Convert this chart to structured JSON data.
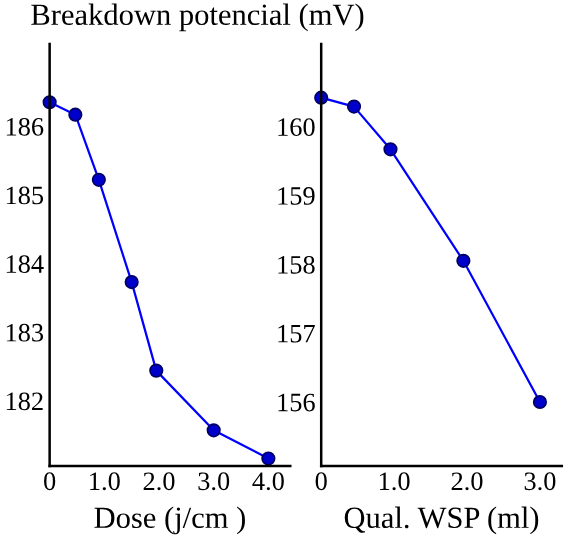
{
  "chart_data": [
    {
      "type": "line",
      "ylabel": "Breakdown potencial (mV)",
      "xlabel": "Dose (j/cm )",
      "x": [
        0,
        0.47,
        0.9,
        1.5,
        1.95,
        3.0,
        4.0
      ],
      "series": [
        {
          "color": "#0000ff",
          "values": [
            186.35,
            186.17,
            185.22,
            183.73,
            182.44,
            181.57,
            181.16
          ]
        }
      ],
      "xlim": [
        0,
        4.4
      ],
      "ylim": [
        181.05,
        187.2
      ],
      "xticks": [
        0,
        {
          "value": 1,
          "label": "1.0"
        },
        {
          "value": 2,
          "label": "2.0"
        },
        {
          "value": 3,
          "label": "3.0"
        },
        {
          "value": 4,
          "label": "4.0"
        }
      ],
      "yticks": [
        182,
        183,
        184,
        185,
        186
      ],
      "marker": "circle",
      "line_style": "solid",
      "grid": false,
      "legend": false
    },
    {
      "type": "line",
      "xlabel": "Qual. WSP (ml)",
      "x": [
        0,
        0.45,
        0.95,
        1.95,
        3.0
      ],
      "series": [
        {
          "color": "#0000ff",
          "values": [
            160.42,
            160.29,
            159.67,
            158.05,
            156.0
          ]
        }
      ],
      "xlim": [
        0,
        3.3
      ],
      "ylim": [
        155.07,
        161.2
      ],
      "xticks": [
        0,
        {
          "value": 1,
          "label": "1.0"
        },
        {
          "value": 2,
          "label": "2.0"
        },
        {
          "value": 3,
          "label": "3.0"
        }
      ],
      "yticks": [
        156,
        157,
        158,
        159,
        160
      ],
      "marker": "circle",
      "line_style": "solid",
      "grid": false,
      "legend": false
    }
  ]
}
